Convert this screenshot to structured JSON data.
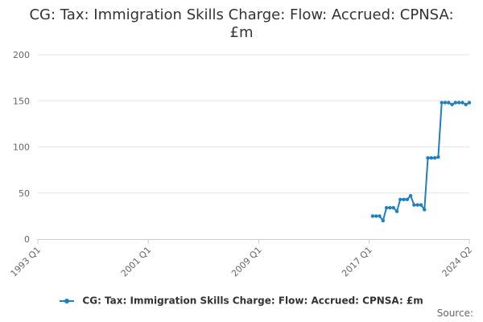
{
  "title": {
    "line1": "CG: Tax: Immigration Skills Charge: Flow: Accrued: CPNSA:",
    "line2": "£m"
  },
  "legend": {
    "label": "CG: Tax: Immigration Skills Charge: Flow: Accrued: CPNSA: £m"
  },
  "source": "Source:",
  "colors": {
    "series": "#1f7fbf",
    "grid": "#e6e6e6",
    "axis": "#cccccc",
    "text": "#666666"
  },
  "chart_data": {
    "type": "line",
    "title": "CG: Tax: Immigration Skills Charge: Flow: Accrued: CPNSA: £m",
    "xlabel": "",
    "ylabel": "",
    "ylim": [
      0,
      200
    ],
    "xlim": [
      "1993 Q1",
      "2024 Q2"
    ],
    "yticks": [
      0,
      50,
      100,
      150,
      200
    ],
    "xticks": [
      "1993 Q1",
      "2001 Q1",
      "2009 Q1",
      "2017 Q1",
      "2024 Q2"
    ],
    "grid": true,
    "legend_position": "bottom",
    "series": [
      {
        "name": "CG: Tax: Immigration Skills Charge: Flow: Accrued: CPNSA: £m",
        "x": [
          "2017 Q2",
          "2017 Q3",
          "2017 Q4",
          "2018 Q1",
          "2018 Q2",
          "2018 Q3",
          "2018 Q4",
          "2019 Q1",
          "2019 Q2",
          "2019 Q3",
          "2019 Q4",
          "2020 Q1",
          "2020 Q2",
          "2020 Q3",
          "2020 Q4",
          "2021 Q1",
          "2021 Q2",
          "2021 Q3",
          "2021 Q4",
          "2022 Q1",
          "2022 Q2",
          "2022 Q3",
          "2022 Q4",
          "2023 Q1",
          "2023 Q2",
          "2023 Q3",
          "2023 Q4",
          "2024 Q1",
          "2024 Q2"
        ],
        "values": [
          25,
          25,
          25,
          20,
          34,
          34,
          34,
          30,
          43,
          43,
          43,
          47,
          37,
          37,
          37,
          32,
          88,
          88,
          88,
          89,
          148,
          148,
          148,
          146,
          148,
          148,
          148,
          146,
          148
        ]
      }
    ]
  }
}
